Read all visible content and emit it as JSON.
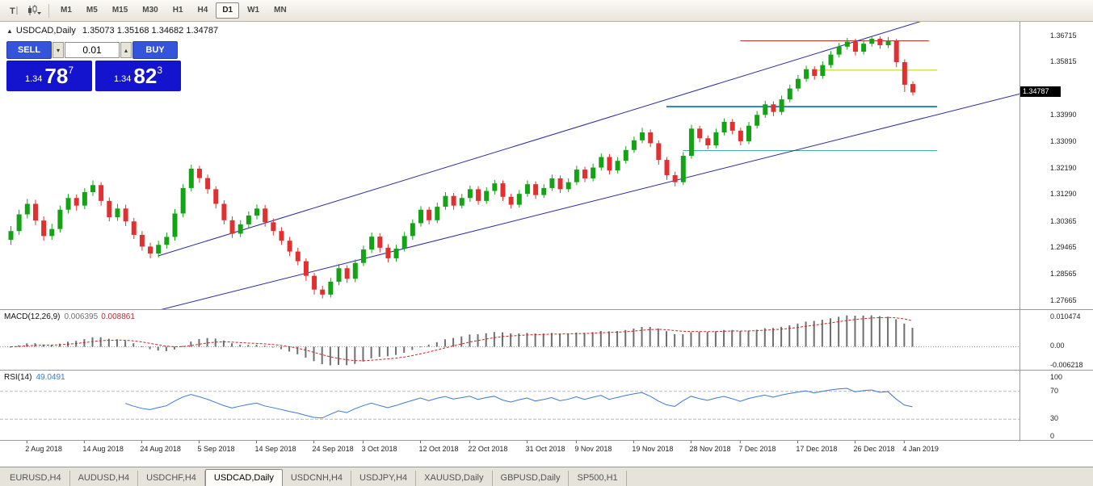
{
  "toolbar": {
    "timeframes": [
      {
        "label": "M1",
        "active": false
      },
      {
        "label": "M5",
        "active": false
      },
      {
        "label": "M15",
        "active": false
      },
      {
        "label": "M30",
        "active": false
      },
      {
        "label": "H1",
        "active": false
      },
      {
        "label": "H4",
        "active": false
      },
      {
        "label": "D1",
        "active": true
      },
      {
        "label": "W1",
        "active": false
      },
      {
        "label": "MN",
        "active": false
      }
    ]
  },
  "header": {
    "symbol": "USDCAD,Daily",
    "ohlc": "1.35073 1.35168 1.34682 1.34787"
  },
  "trade": {
    "sell_label": "SELL",
    "buy_label": "BUY",
    "volume": "0.01",
    "sell_price": {
      "prefix": "1.34",
      "main": "78",
      "sup": "7"
    },
    "buy_price": {
      "prefix": "1.34",
      "main": "82",
      "sup": "3"
    }
  },
  "price_axis": {
    "labels": [
      "1.36715",
      "1.35815",
      "1.33990",
      "1.33090",
      "1.32190",
      "1.31290",
      "1.30365",
      "1.29465",
      "1.28565",
      "1.27665"
    ],
    "current": "1.34787",
    "current_value": 1.34787
  },
  "time_axis": {
    "labels": [
      {
        "t": "2 Aug 2018",
        "i": 2
      },
      {
        "t": "14 Aug 2018",
        "i": 9
      },
      {
        "t": "24 Aug 2018",
        "i": 16
      },
      {
        "t": "5 Sep 2018",
        "i": 23
      },
      {
        "t": "14 Sep 2018",
        "i": 30
      },
      {
        "t": "24 Sep 2018",
        "i": 37
      },
      {
        "t": "3 Oct 2018",
        "i": 43
      },
      {
        "t": "12 Oct 2018",
        "i": 50
      },
      {
        "t": "22 Oct 2018",
        "i": 56
      },
      {
        "t": "31 Oct 2018",
        "i": 63
      },
      {
        "t": "9 Nov 2018",
        "i": 69
      },
      {
        "t": "19 Nov 2018",
        "i": 76
      },
      {
        "t": "28 Nov 2018",
        "i": 83
      },
      {
        "t": "7 Dec 2018",
        "i": 89
      },
      {
        "t": "17 Dec 2018",
        "i": 96
      },
      {
        "t": "26 Dec 2018",
        "i": 103
      },
      {
        "t": "4 Jan 2019",
        "i": 109
      }
    ]
  },
  "indicators": {
    "macd": {
      "title": "MACD(12,26,9)",
      "value_main": "0.006395",
      "value_signal": "0.008861",
      "axis_labels": [
        "0.010474",
        "0.00",
        "-0.006218"
      ],
      "range": [
        -0.0074,
        0.0118
      ],
      "colors": {
        "histogram": "#6f6f6f",
        "signal": "#cc2222"
      }
    },
    "rsi": {
      "title": "RSI(14)",
      "value": "49.0491",
      "axis_labels": [
        "100",
        "70",
        "30",
        "0"
      ],
      "levels": [
        70,
        30
      ],
      "color": "#3c78d8"
    }
  },
  "tabs": [
    {
      "label": "EURUSD,H4",
      "active": false
    },
    {
      "label": "AUDUSD,H4",
      "active": false
    },
    {
      "label": "USDCHF,H4",
      "active": false
    },
    {
      "label": "USDCAD,Daily",
      "active": true
    },
    {
      "label": "USDCNH,H4",
      "active": false
    },
    {
      "label": "USDJPY,H4",
      "active": false
    },
    {
      "label": "XAUUSD,Daily",
      "active": false
    },
    {
      "label": "GBPUSD,Daily",
      "active": false
    },
    {
      "label": "SP500,H1",
      "active": false
    }
  ],
  "chart_data": {
    "type": "candlestick",
    "symbol": "USDCAD",
    "period": "Daily",
    "price_range": [
      1.2738,
      1.372
    ],
    "bull_color": "#14a314",
    "bear_color": "#e03030",
    "candles": [
      [
        1.2975,
        1.3022,
        1.2958,
        1.3005
      ],
      [
        1.3005,
        1.3078,
        1.2992,
        1.3062
      ],
      [
        1.3062,
        1.3115,
        1.3048,
        1.3098
      ],
      [
        1.3098,
        1.3112,
        1.3025,
        1.3041
      ],
      [
        1.3041,
        1.3055,
        1.2972,
        1.2988
      ],
      [
        1.2988,
        1.303,
        1.2975,
        1.3012
      ],
      [
        1.3012,
        1.3092,
        1.3,
        1.3078
      ],
      [
        1.3078,
        1.3132,
        1.3065,
        1.3118
      ],
      [
        1.3118,
        1.313,
        1.3075,
        1.3092
      ],
      [
        1.3092,
        1.3152,
        1.308,
        1.3138
      ],
      [
        1.3138,
        1.3178,
        1.3125,
        1.3162
      ],
      [
        1.3162,
        1.3172,
        1.3092,
        1.3108
      ],
      [
        1.3108,
        1.312,
        1.3038,
        1.3052
      ],
      [
        1.3052,
        1.3098,
        1.304,
        1.3082
      ],
      [
        1.3082,
        1.3095,
        1.3022,
        1.3038
      ],
      [
        1.3038,
        1.305,
        1.2978,
        1.2992
      ],
      [
        1.2992,
        1.3005,
        1.2938,
        1.2952
      ],
      [
        1.2952,
        1.2965,
        1.2912,
        1.2928
      ],
      [
        1.2928,
        1.2972,
        1.2915,
        1.2958
      ],
      [
        1.2958,
        1.3,
        1.2945,
        1.2985
      ],
      [
        1.2985,
        1.308,
        1.2972,
        1.3065
      ],
      [
        1.3065,
        1.3165,
        1.3052,
        1.3152
      ],
      [
        1.3152,
        1.3232,
        1.314,
        1.3218
      ],
      [
        1.3218,
        1.3228,
        1.317,
        1.3186
      ],
      [
        1.3186,
        1.3198,
        1.3132,
        1.3148
      ],
      [
        1.3148,
        1.3158,
        1.3082,
        1.3098
      ],
      [
        1.3098,
        1.311,
        1.3028,
        1.3042
      ],
      [
        1.3042,
        1.3055,
        1.2982,
        1.2996
      ],
      [
        1.2996,
        1.3042,
        1.2984,
        1.3028
      ],
      [
        1.3028,
        1.3072,
        1.3015,
        1.3058
      ],
      [
        1.3058,
        1.3096,
        1.3045,
        1.3082
      ],
      [
        1.3082,
        1.3094,
        1.302,
        1.3035
      ],
      [
        1.3035,
        1.3048,
        1.299,
        1.3005
      ],
      [
        1.3005,
        1.3018,
        1.2958,
        1.2972
      ],
      [
        1.2972,
        1.2985,
        1.292,
        1.2935
      ],
      [
        1.2935,
        1.2948,
        1.2888,
        1.2902
      ],
      [
        1.2902,
        1.2912,
        1.2835,
        1.2852
      ],
      [
        1.2852,
        1.2862,
        1.2788,
        1.2805
      ],
      [
        1.2805,
        1.2818,
        1.2775,
        1.2788
      ],
      [
        1.2788,
        1.2845,
        1.2778,
        1.2832
      ],
      [
        1.2832,
        1.2892,
        1.282,
        1.2878
      ],
      [
        1.2878,
        1.2888,
        1.2828,
        1.2842
      ],
      [
        1.2842,
        1.2908,
        1.283,
        1.2896
      ],
      [
        1.2896,
        1.2955,
        1.2885,
        1.2942
      ],
      [
        1.2942,
        1.3,
        1.293,
        1.2986
      ],
      [
        1.2986,
        1.2998,
        1.2932,
        1.2948
      ],
      [
        1.2948,
        1.296,
        1.2898,
        1.2912
      ],
      [
        1.2912,
        1.2958,
        1.29,
        1.2945
      ],
      [
        1.2945,
        1.3002,
        1.2935,
        1.2988
      ],
      [
        1.2988,
        1.3045,
        1.2975,
        1.3032
      ],
      [
        1.3032,
        1.309,
        1.302,
        1.3078
      ],
      [
        1.3078,
        1.3088,
        1.3028,
        1.3042
      ],
      [
        1.3042,
        1.3102,
        1.3032,
        1.3088
      ],
      [
        1.3088,
        1.3138,
        1.3078,
        1.3125
      ],
      [
        1.3125,
        1.3135,
        1.3078,
        1.3092
      ],
      [
        1.3092,
        1.3132,
        1.3082,
        1.3118
      ],
      [
        1.3118,
        1.316,
        1.3105,
        1.3148
      ],
      [
        1.3148,
        1.3158,
        1.3095,
        1.3108
      ],
      [
        1.3108,
        1.3155,
        1.3098,
        1.3142
      ],
      [
        1.3142,
        1.318,
        1.313,
        1.3168
      ],
      [
        1.3168,
        1.3178,
        1.3108,
        1.3122
      ],
      [
        1.3122,
        1.3132,
        1.3082,
        1.3095
      ],
      [
        1.3095,
        1.3145,
        1.3085,
        1.3132
      ],
      [
        1.3132,
        1.3178,
        1.3122,
        1.3165
      ],
      [
        1.3165,
        1.3175,
        1.3115,
        1.3128
      ],
      [
        1.3128,
        1.3165,
        1.3118,
        1.3152
      ],
      [
        1.3152,
        1.3198,
        1.3142,
        1.3185
      ],
      [
        1.3185,
        1.3195,
        1.3135,
        1.3148
      ],
      [
        1.3148,
        1.3185,
        1.3138,
        1.3172
      ],
      [
        1.3172,
        1.3228,
        1.3162,
        1.3215
      ],
      [
        1.3215,
        1.3225,
        1.3172,
        1.3185
      ],
      [
        1.3185,
        1.3235,
        1.3175,
        1.3222
      ],
      [
        1.3222,
        1.327,
        1.3212,
        1.3258
      ],
      [
        1.3258,
        1.3268,
        1.3198,
        1.3212
      ],
      [
        1.3212,
        1.3258,
        1.3202,
        1.3245
      ],
      [
        1.3245,
        1.3295,
        1.3235,
        1.3282
      ],
      [
        1.3282,
        1.3328,
        1.3272,
        1.3315
      ],
      [
        1.3315,
        1.3358,
        1.3305,
        1.3342
      ],
      [
        1.3342,
        1.3352,
        1.3292,
        1.3305
      ],
      [
        1.3305,
        1.3315,
        1.3232,
        1.3248
      ],
      [
        1.3248,
        1.3258,
        1.318,
        1.3196
      ],
      [
        1.3196,
        1.3208,
        1.3158,
        1.3172
      ],
      [
        1.3172,
        1.3275,
        1.3162,
        1.3262
      ],
      [
        1.3262,
        1.3368,
        1.3252,
        1.3355
      ],
      [
        1.3355,
        1.3365,
        1.3308,
        1.3322
      ],
      [
        1.3322,
        1.3332,
        1.3285,
        1.3298
      ],
      [
        1.3298,
        1.3355,
        1.3288,
        1.3342
      ],
      [
        1.3342,
        1.339,
        1.3332,
        1.3378
      ],
      [
        1.3378,
        1.3388,
        1.3335,
        1.3348
      ],
      [
        1.3348,
        1.3358,
        1.3298,
        1.3312
      ],
      [
        1.3312,
        1.3378,
        1.3302,
        1.3365
      ],
      [
        1.3365,
        1.3415,
        1.3355,
        1.3402
      ],
      [
        1.3402,
        1.345,
        1.3392,
        1.3438
      ],
      [
        1.3438,
        1.3448,
        1.3398,
        1.3412
      ],
      [
        1.3412,
        1.3468,
        1.3402,
        1.3455
      ],
      [
        1.3455,
        1.3505,
        1.3445,
        1.3492
      ],
      [
        1.3492,
        1.3538,
        1.3482,
        1.3525
      ],
      [
        1.3525,
        1.357,
        1.3515,
        1.3558
      ],
      [
        1.3558,
        1.3568,
        1.3522,
        1.3535
      ],
      [
        1.3535,
        1.3585,
        1.3525,
        1.3572
      ],
      [
        1.3572,
        1.362,
        1.3562,
        1.3608
      ],
      [
        1.3608,
        1.3648,
        1.3598,
        1.3635
      ],
      [
        1.3635,
        1.3665,
        1.3625,
        1.3652
      ],
      [
        1.3652,
        1.3662,
        1.3605,
        1.3618
      ],
      [
        1.3618,
        1.3658,
        1.3608,
        1.3645
      ],
      [
        1.3645,
        1.3672,
        1.3635,
        1.3662
      ],
      [
        1.3662,
        1.367,
        1.3628,
        1.364
      ],
      [
        1.364,
        1.3668,
        1.363,
        1.3655
      ],
      [
        1.3655,
        1.3662,
        1.3565,
        1.3582
      ],
      [
        1.3582,
        1.3592,
        1.348,
        1.3505
      ],
      [
        1.35073,
        1.35168,
        1.34682,
        1.34787
      ]
    ],
    "trendlines": [
      {
        "name": "channel-upper",
        "i1": 18,
        "p1": 1.292,
        "i2": 112,
        "p2": 1.373,
        "color": "#2929a3"
      },
      {
        "name": "channel-lower",
        "i1": 16,
        "p1": 1.272,
        "i2": 124,
        "p2": 1.348,
        "color": "#2929a3"
      }
    ],
    "hlines": [
      {
        "name": "resistance-red",
        "price": 1.3655,
        "i1": 89,
        "i2": 112,
        "color": "#aa2222",
        "width": 1
      },
      {
        "name": "level-yellow",
        "price": 1.3555,
        "i1": 98,
        "i2": 113,
        "color": "#c9c900",
        "width": 1
      },
      {
        "name": "support-blue",
        "price": 1.343,
        "i1": 80,
        "i2": 113,
        "color": "#2a7fbf",
        "width": 2
      },
      {
        "name": "support-teal",
        "price": 1.328,
        "i1": 82,
        "i2": 113,
        "color": "#49a8a8",
        "width": 1
      }
    ]
  }
}
